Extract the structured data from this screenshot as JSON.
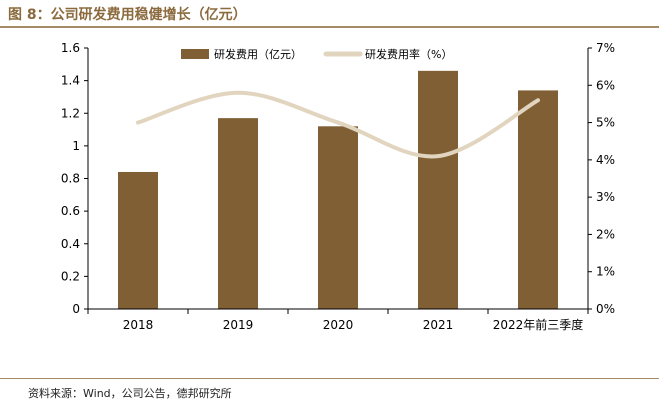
{
  "figure": {
    "title": "图 8：公司研发费用稳健增长（亿元）",
    "source": "资料来源：Wind，公司公告，德邦研究所"
  },
  "colors": {
    "bar": "#7f5f33",
    "line": "#e2d5bf",
    "axis": "#000000",
    "title": "#8b6a3e",
    "rule": "#a58a66"
  },
  "chart_data": {
    "type": "bar",
    "categories": [
      "2018",
      "2019",
      "2020",
      "2021",
      "2022年前三季度"
    ],
    "series": [
      {
        "name": "研发费用（亿元）",
        "type": "bar",
        "axis": "left",
        "values": [
          0.84,
          1.17,
          1.12,
          1.46,
          1.34
        ]
      },
      {
        "name": "研发费用率（%）",
        "type": "line",
        "smooth": true,
        "axis": "right",
        "values": [
          5.0,
          5.8,
          5.0,
          4.1,
          5.6
        ]
      }
    ],
    "ylim_left": [
      0,
      1.6
    ],
    "yticks_left": [
      "0",
      "0.2",
      "0.4",
      "0.6",
      "0.8",
      "1",
      "1.2",
      "1.4",
      "1.6"
    ],
    "ylim_right": [
      0,
      7
    ],
    "yticks_right": [
      "0%",
      "1%",
      "2%",
      "3%",
      "4%",
      "5%",
      "6%",
      "7%"
    ],
    "grid": false,
    "legend_position": "top-center"
  }
}
